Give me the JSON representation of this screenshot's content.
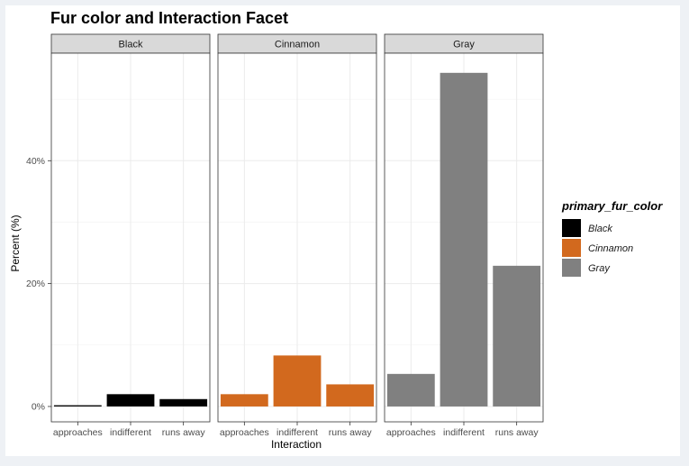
{
  "chart_data": {
    "type": "bar",
    "title": "Fur color and Interaction Facet",
    "xlabel": "Interaction",
    "ylabel": "Percent (%)",
    "categories": [
      "approaches",
      "indifferent",
      "runs away"
    ],
    "y_ticks": [
      0,
      20,
      40
    ],
    "y_tick_labels": [
      "0%",
      "20%",
      "40%"
    ],
    "ylim": [
      -2.5,
      57.5
    ],
    "grid": true,
    "legend": {
      "title": "primary_fur_color",
      "position": "right",
      "entries": [
        {
          "label": "Black",
          "color": "#000000"
        },
        {
          "label": "Cinnamon",
          "color": "#d2691e"
        },
        {
          "label": "Gray",
          "color": "#808080"
        }
      ]
    },
    "facets": [
      {
        "label": "Black",
        "color": "#000000",
        "values": [
          0.2,
          2.0,
          1.2
        ]
      },
      {
        "label": "Cinnamon",
        "color": "#d2691e",
        "values": [
          2.0,
          8.3,
          3.6
        ]
      },
      {
        "label": "Gray",
        "color": "#808080",
        "values": [
          5.3,
          54.3,
          22.9
        ]
      }
    ]
  }
}
